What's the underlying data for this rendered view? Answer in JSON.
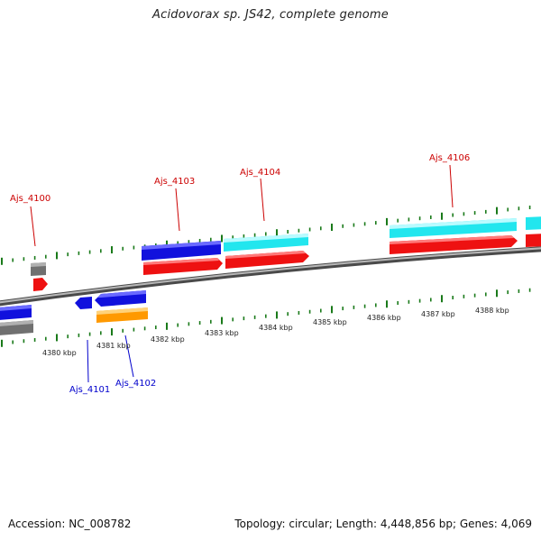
{
  "title": "Acidovorax sp. JS42, complete genome",
  "footer": {
    "accession": "Accession: NC_008782",
    "topology": "Topology: circular; Length: 4,448,856 bp; Genes: 4,069"
  },
  "colors": {
    "label_forward": "#cc0000",
    "label_reverse": "#0000cc",
    "tick": "#1a7a1a",
    "backbone": "#8a8a8a",
    "cds_red": "#ee1111",
    "cds_blue": "#1111dd",
    "cds_cyan": "#22e6ee",
    "cds_gray": "#707070",
    "cds_orange": "#ff9900"
  },
  "axis": {
    "unit": "kbp",
    "tick_labels": [
      "4380 kbp",
      "4381 kbp",
      "4382 kbp",
      "4383 kbp",
      "4384 kbp",
      "4385 kbp",
      "4386 kbp",
      "4387 kbp",
      "4388 kbp"
    ]
  },
  "gene_labels": [
    {
      "text": "Ajs_4100",
      "strand": "forward"
    },
    {
      "text": "Ajs_4103",
      "strand": "forward"
    },
    {
      "text": "Ajs_4104",
      "strand": "forward"
    },
    {
      "text": "Ajs_4106",
      "strand": "forward"
    },
    {
      "text": "Ajs_4101",
      "strand": "reverse"
    },
    {
      "text": "Ajs_4102",
      "strand": "reverse"
    }
  ]
}
